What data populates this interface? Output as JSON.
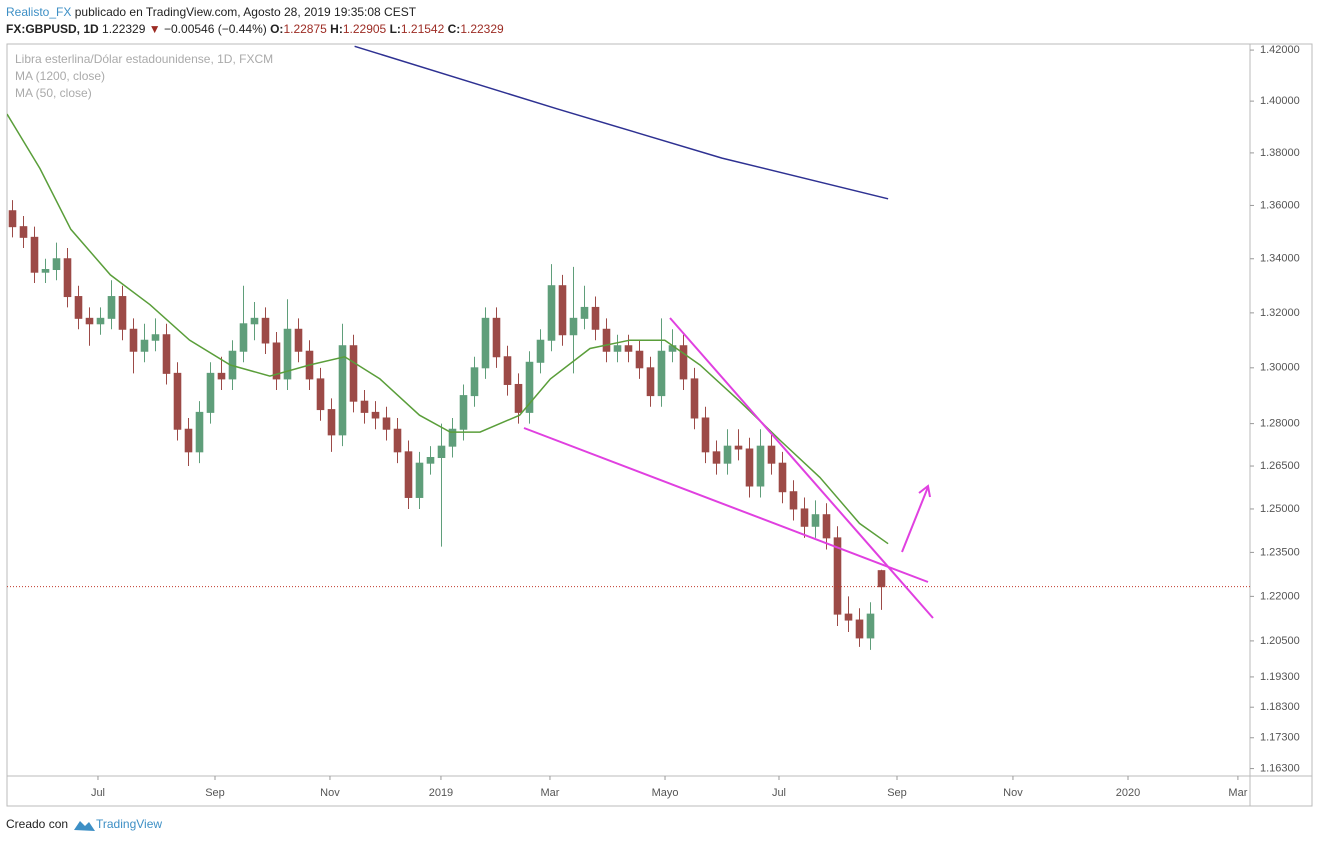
{
  "header": {
    "author": "Realisto_FX",
    "published": "publicado en TradingView.com, Agosto 28, 2019 19:35:08 CEST",
    "symbol": "FX:GBPUSD, 1D",
    "arrow": "▼",
    "change": "−0.00546 (−0.44%)",
    "o": "O:",
    "h": "H:",
    "l": "L:",
    "c": "C:"
  },
  "chart_data": {
    "type": "candlestick",
    "log_scale": true,
    "series": [
      {
        "name": "Libra esterlina/Dólar estadounidense, 1D, FXCM",
        "type": "candlestick",
        "up_color": "#5f9e7a",
        "down_color": "#9c4a47",
        "open": [
          1.358,
          1.352,
          1.348,
          1.335,
          1.336,
          1.34,
          1.326,
          1.318,
          1.316,
          1.318,
          1.326,
          1.314,
          1.306,
          1.31,
          1.312,
          1.298,
          1.278,
          1.27,
          1.284,
          1.298,
          1.296,
          1.306,
          1.316,
          1.318,
          1.309,
          1.296,
          1.314,
          1.306,
          1.296,
          1.285,
          1.276,
          1.308,
          1.288,
          1.284,
          1.282,
          1.278,
          1.27,
          1.254,
          1.266,
          1.268,
          1.272,
          1.278,
          1.29,
          1.3,
          1.318,
          1.304,
          1.294,
          1.284,
          1.302,
          1.31,
          1.33,
          1.312,
          1.318,
          1.322,
          1.314,
          1.306,
          1.308,
          1.306,
          1.3,
          1.29,
          1.306,
          1.308,
          1.296,
          1.282,
          1.27,
          1.266,
          1.272,
          1.271,
          1.258,
          1.272,
          1.266,
          1.256,
          1.25,
          1.244,
          1.248,
          1.24,
          1.214,
          1.212,
          1.206,
          1.22875
        ],
        "high": [
          1.362,
          1.356,
          1.352,
          1.34,
          1.346,
          1.344,
          1.33,
          1.322,
          1.322,
          1.332,
          1.33,
          1.318,
          1.316,
          1.318,
          1.316,
          1.302,
          1.282,
          1.288,
          1.302,
          1.304,
          1.31,
          1.33,
          1.324,
          1.322,
          1.313,
          1.325,
          1.318,
          1.31,
          1.3,
          1.289,
          1.316,
          1.312,
          1.292,
          1.288,
          1.286,
          1.282,
          1.274,
          1.27,
          1.272,
          1.28,
          1.282,
          1.294,
          1.304,
          1.322,
          1.322,
          1.308,
          1.298,
          1.306,
          1.314,
          1.338,
          1.334,
          1.337,
          1.33,
          1.326,
          1.318,
          1.312,
          1.312,
          1.31,
          1.304,
          1.318,
          1.314,
          1.312,
          1.3,
          1.286,
          1.274,
          1.278,
          1.278,
          1.275,
          1.278,
          1.276,
          1.27,
          1.26,
          1.254,
          1.253,
          1.252,
          1.244,
          1.22,
          1.216,
          1.218,
          1.22905
        ],
        "low": [
          1.348,
          1.344,
          1.331,
          1.331,
          1.332,
          1.322,
          1.314,
          1.308,
          1.312,
          1.314,
          1.31,
          1.298,
          1.302,
          1.306,
          1.294,
          1.274,
          1.265,
          1.266,
          1.28,
          1.292,
          1.292,
          1.302,
          1.31,
          1.305,
          1.292,
          1.292,
          1.302,
          1.292,
          1.281,
          1.27,
          1.272,
          1.284,
          1.28,
          1.278,
          1.274,
          1.266,
          1.25,
          1.25,
          1.262,
          1.237,
          1.268,
          1.274,
          1.286,
          1.296,
          1.3,
          1.29,
          1.28,
          1.28,
          1.298,
          1.306,
          1.308,
          1.298,
          1.314,
          1.31,
          1.302,
          1.302,
          1.302,
          1.296,
          1.286,
          1.286,
          1.302,
          1.292,
          1.278,
          1.266,
          1.262,
          1.262,
          1.267,
          1.254,
          1.254,
          1.262,
          1.252,
          1.246,
          1.24,
          1.24,
          1.236,
          1.21,
          1.208,
          1.203,
          1.202,
          1.21542
        ],
        "close": [
          1.352,
          1.348,
          1.335,
          1.336,
          1.34,
          1.326,
          1.318,
          1.316,
          1.318,
          1.326,
          1.314,
          1.306,
          1.31,
          1.312,
          1.298,
          1.278,
          1.27,
          1.284,
          1.298,
          1.296,
          1.306,
          1.316,
          1.318,
          1.309,
          1.296,
          1.314,
          1.306,
          1.296,
          1.285,
          1.276,
          1.308,
          1.288,
          1.284,
          1.282,
          1.278,
          1.27,
          1.254,
          1.266,
          1.268,
          1.272,
          1.278,
          1.29,
          1.3,
          1.318,
          1.304,
          1.294,
          1.284,
          1.302,
          1.31,
          1.33,
          1.312,
          1.318,
          1.322,
          1.314,
          1.306,
          1.308,
          1.306,
          1.3,
          1.29,
          1.306,
          1.308,
          1.296,
          1.282,
          1.27,
          1.266,
          1.272,
          1.271,
          1.258,
          1.272,
          1.266,
          1.256,
          1.25,
          1.244,
          1.248,
          1.24,
          1.214,
          1.212,
          1.206,
          1.214,
          1.22329
        ]
      },
      {
        "name": "MA (1200, close)",
        "type": "line",
        "color": "#2e3192",
        "x": [
          31.6,
          50,
          65,
          80.1
        ],
        "values": [
          1.4215,
          1.397,
          1.378,
          1.3625
        ]
      },
      {
        "name": "MA (50, close)",
        "type": "line",
        "color": "#5a9e3a",
        "x": [
          0,
          3,
          5.8,
          9.4,
          13,
          16.6,
          20.3,
          23.9,
          27.5,
          30.7,
          33.9,
          37.5,
          40.3,
          43,
          46.6,
          49.4,
          53,
          56.6,
          59.8,
          63,
          66.6,
          70.3,
          73.9,
          77.5,
          80.1
        ],
        "values": [
          1.395,
          1.374,
          1.351,
          1.334,
          1.323,
          1.31,
          1.301,
          1.297,
          1.301,
          1.304,
          1.296,
          1.283,
          1.277,
          1.277,
          1.283,
          1.296,
          1.307,
          1.31,
          1.31,
          1.301,
          1.288,
          1.274,
          1.261,
          1.245,
          1.238
        ]
      }
    ],
    "price_line_color": "#c0392b",
    "xlim": [
      0,
      113
    ],
    "xticks": [
      {
        "value": 8.27,
        "label": "Jul"
      },
      {
        "value": 18.91,
        "label": "Sep"
      },
      {
        "value": 29.36,
        "label": "Nov"
      },
      {
        "value": 39.45,
        "label": "2019"
      },
      {
        "value": 49.36,
        "label": "Mar"
      },
      {
        "value": 59.82,
        "label": "Mayo"
      },
      {
        "value": 70.18,
        "label": "Jul"
      },
      {
        "value": 80.91,
        "label": "Sep"
      },
      {
        "value": 91.45,
        "label": "Nov"
      },
      {
        "value": 101.91,
        "label": "2020"
      },
      {
        "value": 111.9,
        "label": "Mar"
      }
    ],
    "ylim": [
      1.1606,
      1.4224
    ],
    "yticks": [
      {
        "value": 1.42,
        "label": "1.42000"
      },
      {
        "value": 1.4,
        "label": "1.40000"
      },
      {
        "value": 1.38,
        "label": "1.38000"
      },
      {
        "value": 1.36,
        "label": "1.36000"
      },
      {
        "value": 1.34,
        "label": "1.34000"
      },
      {
        "value": 1.32,
        "label": "1.32000"
      },
      {
        "value": 1.3,
        "label": "1.30000"
      },
      {
        "value": 1.28,
        "label": "1.28000"
      },
      {
        "value": 1.265,
        "label": "1.26500"
      },
      {
        "value": 1.25,
        "label": "1.25000"
      },
      {
        "value": 1.235,
        "label": "1.23500"
      },
      {
        "value": 1.22,
        "label": "1.22000"
      },
      {
        "value": 1.205,
        "label": "1.20500"
      },
      {
        "value": 1.193,
        "label": "1.19300"
      },
      {
        "value": 1.183,
        "label": "1.18300"
      },
      {
        "value": 1.173,
        "label": "1.17300"
      },
      {
        "value": 1.163,
        "label": "1.16300"
      }
    ]
  },
  "footer": {
    "made_with": "Creado con",
    "brand": "TradingView"
  }
}
